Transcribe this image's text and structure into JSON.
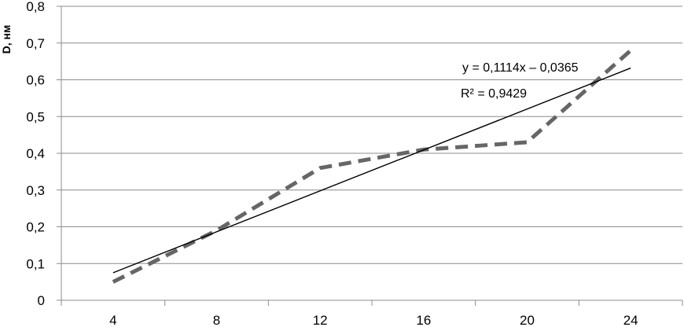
{
  "chart_data": {
    "type": "line",
    "title": "",
    "xlabel": "",
    "ylabel": "D, нм",
    "ylim": [
      0,
      0.8
    ],
    "y_ticks": [
      0,
      0.1,
      0.2,
      0.3,
      0.4,
      0.5,
      0.6,
      0.7,
      0.8
    ],
    "y_tick_labels": [
      "0",
      "0,1",
      "0,2",
      "0,3",
      "0,4",
      "0,5",
      "0,6",
      "0,7",
      "0,8"
    ],
    "categories": [
      "4",
      "8",
      "12",
      "16",
      "20",
      "24"
    ],
    "grid": true,
    "series": [
      {
        "style": "dashed",
        "color": "#666666",
        "x": [
          4,
          8,
          12,
          16,
          20,
          24
        ],
        "values": [
          0.05,
          0.19,
          0.36,
          0.41,
          0.43,
          0.68
        ]
      },
      {
        "style": "trendline",
        "color": "#000000",
        "x": [
          4,
          8,
          12,
          16,
          20,
          24
        ],
        "values": [
          0.0749,
          0.1863,
          0.2977,
          0.4091,
          0.5205,
          0.6319
        ]
      }
    ],
    "annotations": {
      "equation": "y = 0,1114x – 0,0365",
      "r_squared": "R² = 0,9429"
    }
  }
}
